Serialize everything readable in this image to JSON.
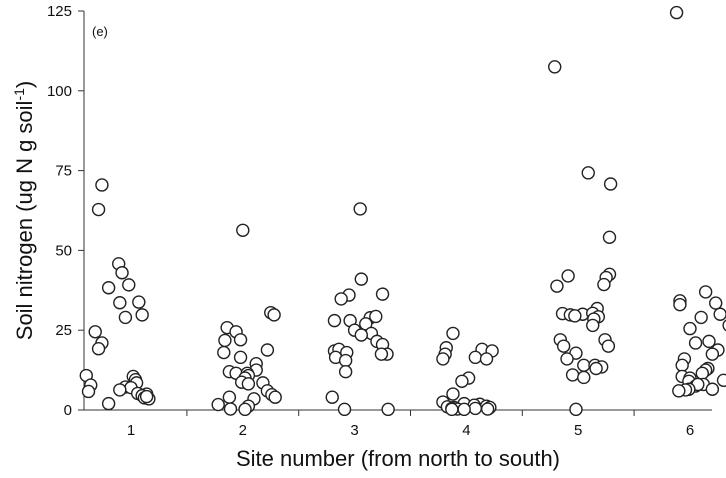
{
  "chart_data": {
    "type": "scatter",
    "panel_label": "(e)",
    "xlabel": "Site number (from north to south)",
    "ylabel": "Soil nitrogen (ug N g soil-1)",
    "ylabel_main": "Soil nitrogen (ug N g soil",
    "ylabel_sup": "-1",
    "ylabel_tail": ")",
    "ylim": [
      0,
      125
    ],
    "yticks": [
      0,
      25,
      50,
      75,
      100,
      125
    ],
    "categories": [
      "1",
      "2",
      "3",
      "4",
      "5",
      "6"
    ],
    "grid": false,
    "marker": "open-circle",
    "jitter_note": "points horizontally jittered around each site",
    "series": [
      {
        "site": 1,
        "points": [
          [
            0.74,
            70.5
          ],
          [
            0.71,
            62.8
          ],
          [
            0.89,
            45.8
          ],
          [
            0.92,
            43
          ],
          [
            0.98,
            39.2
          ],
          [
            0.8,
            38.3
          ],
          [
            1.07,
            33.8
          ],
          [
            0.9,
            33.6
          ],
          [
            1.1,
            29.8
          ],
          [
            0.95,
            29
          ],
          [
            0.68,
            24.5
          ],
          [
            0.74,
            21
          ],
          [
            0.71,
            19.2
          ],
          [
            0.6,
            10.8
          ],
          [
            1.02,
            10.5
          ],
          [
            1.04,
            9.5
          ],
          [
            1.05,
            8.5
          ],
          [
            0.64,
            7.8
          ],
          [
            0.95,
            7.2
          ],
          [
            1.0,
            7
          ],
          [
            0.9,
            6.3
          ],
          [
            0.62,
            5.8
          ],
          [
            1.06,
            5.2
          ],
          [
            1.14,
            5
          ],
          [
            1.1,
            4.5
          ],
          [
            1.12,
            3.8
          ],
          [
            1.16,
            3.5
          ],
          [
            1.14,
            4.2
          ],
          [
            0.8,
            2
          ]
        ]
      },
      {
        "site": 2,
        "points": [
          [
            2.0,
            56.3
          ],
          [
            2.25,
            30.5
          ],
          [
            2.28,
            29.8
          ],
          [
            1.86,
            25.8
          ],
          [
            1.94,
            24.5
          ],
          [
            1.98,
            22
          ],
          [
            1.84,
            21.8
          ],
          [
            1.83,
            18
          ],
          [
            2.22,
            18.8
          ],
          [
            1.98,
            16.5
          ],
          [
            2.12,
            14.5
          ],
          [
            2.12,
            12.5
          ],
          [
            1.88,
            12
          ],
          [
            1.94,
            11.5
          ],
          [
            2.04,
            11.5
          ],
          [
            2.05,
            10.8
          ],
          [
            2.02,
            10
          ],
          [
            1.99,
            8.7
          ],
          [
            2.05,
            8.2
          ],
          [
            2.18,
            8.5
          ],
          [
            2.22,
            6
          ],
          [
            2.26,
            4.8
          ],
          [
            2.29,
            4
          ],
          [
            1.88,
            4
          ],
          [
            2.1,
            3.5
          ],
          [
            1.78,
            1.7
          ],
          [
            2.05,
            1.2
          ],
          [
            1.89,
            0.3
          ],
          [
            2.02,
            0.2
          ]
        ]
      },
      {
        "site": 3,
        "points": [
          [
            3.05,
            63
          ],
          [
            3.06,
            41
          ],
          [
            2.95,
            36
          ],
          [
            3.25,
            36.3
          ],
          [
            2.88,
            34.8
          ],
          [
            3.14,
            28.9
          ],
          [
            3.19,
            29.3
          ],
          [
            2.82,
            28
          ],
          [
            3.1,
            27
          ],
          [
            2.96,
            28
          ],
          [
            3.0,
            25
          ],
          [
            3.15,
            24
          ],
          [
            3.06,
            23.5
          ],
          [
            2.82,
            18.5
          ],
          [
            3.2,
            21.5
          ],
          [
            2.86,
            19
          ],
          [
            2.93,
            18
          ],
          [
            3.25,
            20.5
          ],
          [
            3.29,
            17.5
          ],
          [
            2.83,
            16.5
          ],
          [
            3.24,
            17.5
          ],
          [
            2.92,
            15.5
          ],
          [
            2.92,
            12
          ],
          [
            2.8,
            4
          ],
          [
            2.91,
            0.2
          ],
          [
            3.3,
            0.2
          ]
        ]
      },
      {
        "site": 4,
        "points": [
          [
            3.88,
            24
          ],
          [
            3.82,
            19.5
          ],
          [
            4.14,
            19
          ],
          [
            4.23,
            18.5
          ],
          [
            3.81,
            17.5
          ],
          [
            4.08,
            16.5
          ],
          [
            3.79,
            16
          ],
          [
            4.18,
            16
          ],
          [
            4.02,
            10
          ],
          [
            3.96,
            9
          ],
          [
            3.88,
            5
          ],
          [
            3.79,
            2.5
          ],
          [
            3.98,
            2
          ],
          [
            4.12,
            1.8
          ],
          [
            4.07,
            1.5
          ],
          [
            3.83,
            1
          ],
          [
            3.89,
            0.8
          ],
          [
            3.87,
            0.5
          ],
          [
            3.92,
            0.3
          ],
          [
            3.87,
            0.2
          ],
          [
            4.18,
            1.2
          ],
          [
            4.2,
            0.5
          ],
          [
            4.21,
            0.8
          ],
          [
            4.08,
            0.5
          ],
          [
            3.98,
            0.2
          ],
          [
            4.19,
            0.3
          ]
        ]
      },
      {
        "site": 5,
        "points": [
          [
            4.79,
            107.5
          ],
          [
            5.09,
            74.3
          ],
          [
            5.29,
            70.8
          ],
          [
            5.28,
            54.1
          ],
          [
            5.28,
            42.5
          ],
          [
            5.25,
            41.5
          ],
          [
            4.91,
            42
          ],
          [
            5.23,
            39.3
          ],
          [
            4.81,
            38.8
          ],
          [
            5.17,
            31.8
          ],
          [
            4.86,
            30.2
          ],
          [
            4.93,
            29.8
          ],
          [
            5.04,
            30
          ],
          [
            5.13,
            30.3
          ],
          [
            5.18,
            29.2
          ],
          [
            4.97,
            29.5
          ],
          [
            5.14,
            28.5
          ],
          [
            5.13,
            26.5
          ],
          [
            4.84,
            22
          ],
          [
            5.24,
            22
          ],
          [
            4.87,
            20
          ],
          [
            5.27,
            20
          ],
          [
            4.98,
            17.8
          ],
          [
            4.9,
            16
          ],
          [
            5.05,
            14
          ],
          [
            5.15,
            14
          ],
          [
            5.21,
            13.5
          ],
          [
            5.16,
            13
          ],
          [
            4.95,
            11
          ],
          [
            5.05,
            10.2
          ],
          [
            4.98,
            0.2
          ]
        ]
      },
      {
        "site": 6,
        "points": [
          [
            5.88,
            124.5
          ],
          [
            6.14,
            37
          ],
          [
            5.91,
            34.2
          ],
          [
            5.91,
            33
          ],
          [
            6.23,
            33.5
          ],
          [
            6.27,
            30
          ],
          [
            6.1,
            29
          ],
          [
            6.35,
            26.5
          ],
          [
            6.0,
            25.5
          ],
          [
            6.05,
            21
          ],
          [
            6.17,
            21.5
          ],
          [
            6.25,
            18.8
          ],
          [
            6.2,
            17.5
          ],
          [
            5.95,
            16
          ],
          [
            5.93,
            14
          ],
          [
            6.16,
            13
          ],
          [
            6.14,
            12.5
          ],
          [
            6.11,
            11.5
          ],
          [
            5.93,
            10.5
          ],
          [
            6.0,
            10
          ],
          [
            6.3,
            9.3
          ],
          [
            5.99,
            9
          ],
          [
            6.12,
            8
          ],
          [
            6.05,
            7.5
          ],
          [
            6.07,
            8
          ],
          [
            5.99,
            6.5
          ],
          [
            5.96,
            6.3
          ],
          [
            6.2,
            6.5
          ],
          [
            5.9,
            6
          ]
        ]
      }
    ]
  }
}
